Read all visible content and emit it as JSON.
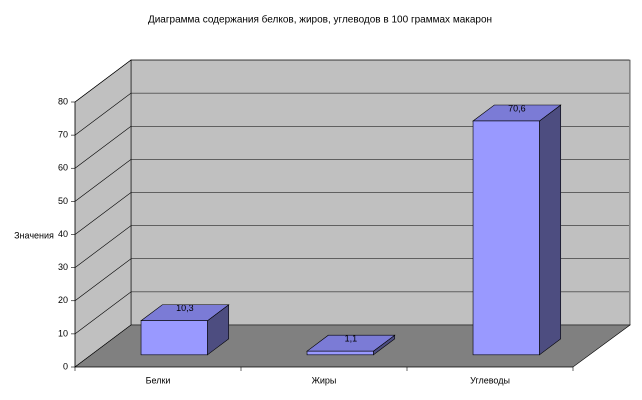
{
  "chart_data": {
    "type": "bar3d",
    "title": "Диаграмма содержания белков, жиров, углеводов в 100 граммах макарон",
    "y_label": "Значения",
    "categories": [
      "Белки",
      "Жиры",
      "Углеводы"
    ],
    "values": [
      10.3,
      1.1,
      70.6
    ],
    "value_labels": [
      "10,3",
      "1,1",
      "70,6"
    ],
    "color": "#9999ff",
    "ylim": [
      0,
      80
    ],
    "yticks": [
      0,
      10,
      20,
      30,
      40,
      50,
      60,
      70,
      80
    ],
    "grid": true
  }
}
